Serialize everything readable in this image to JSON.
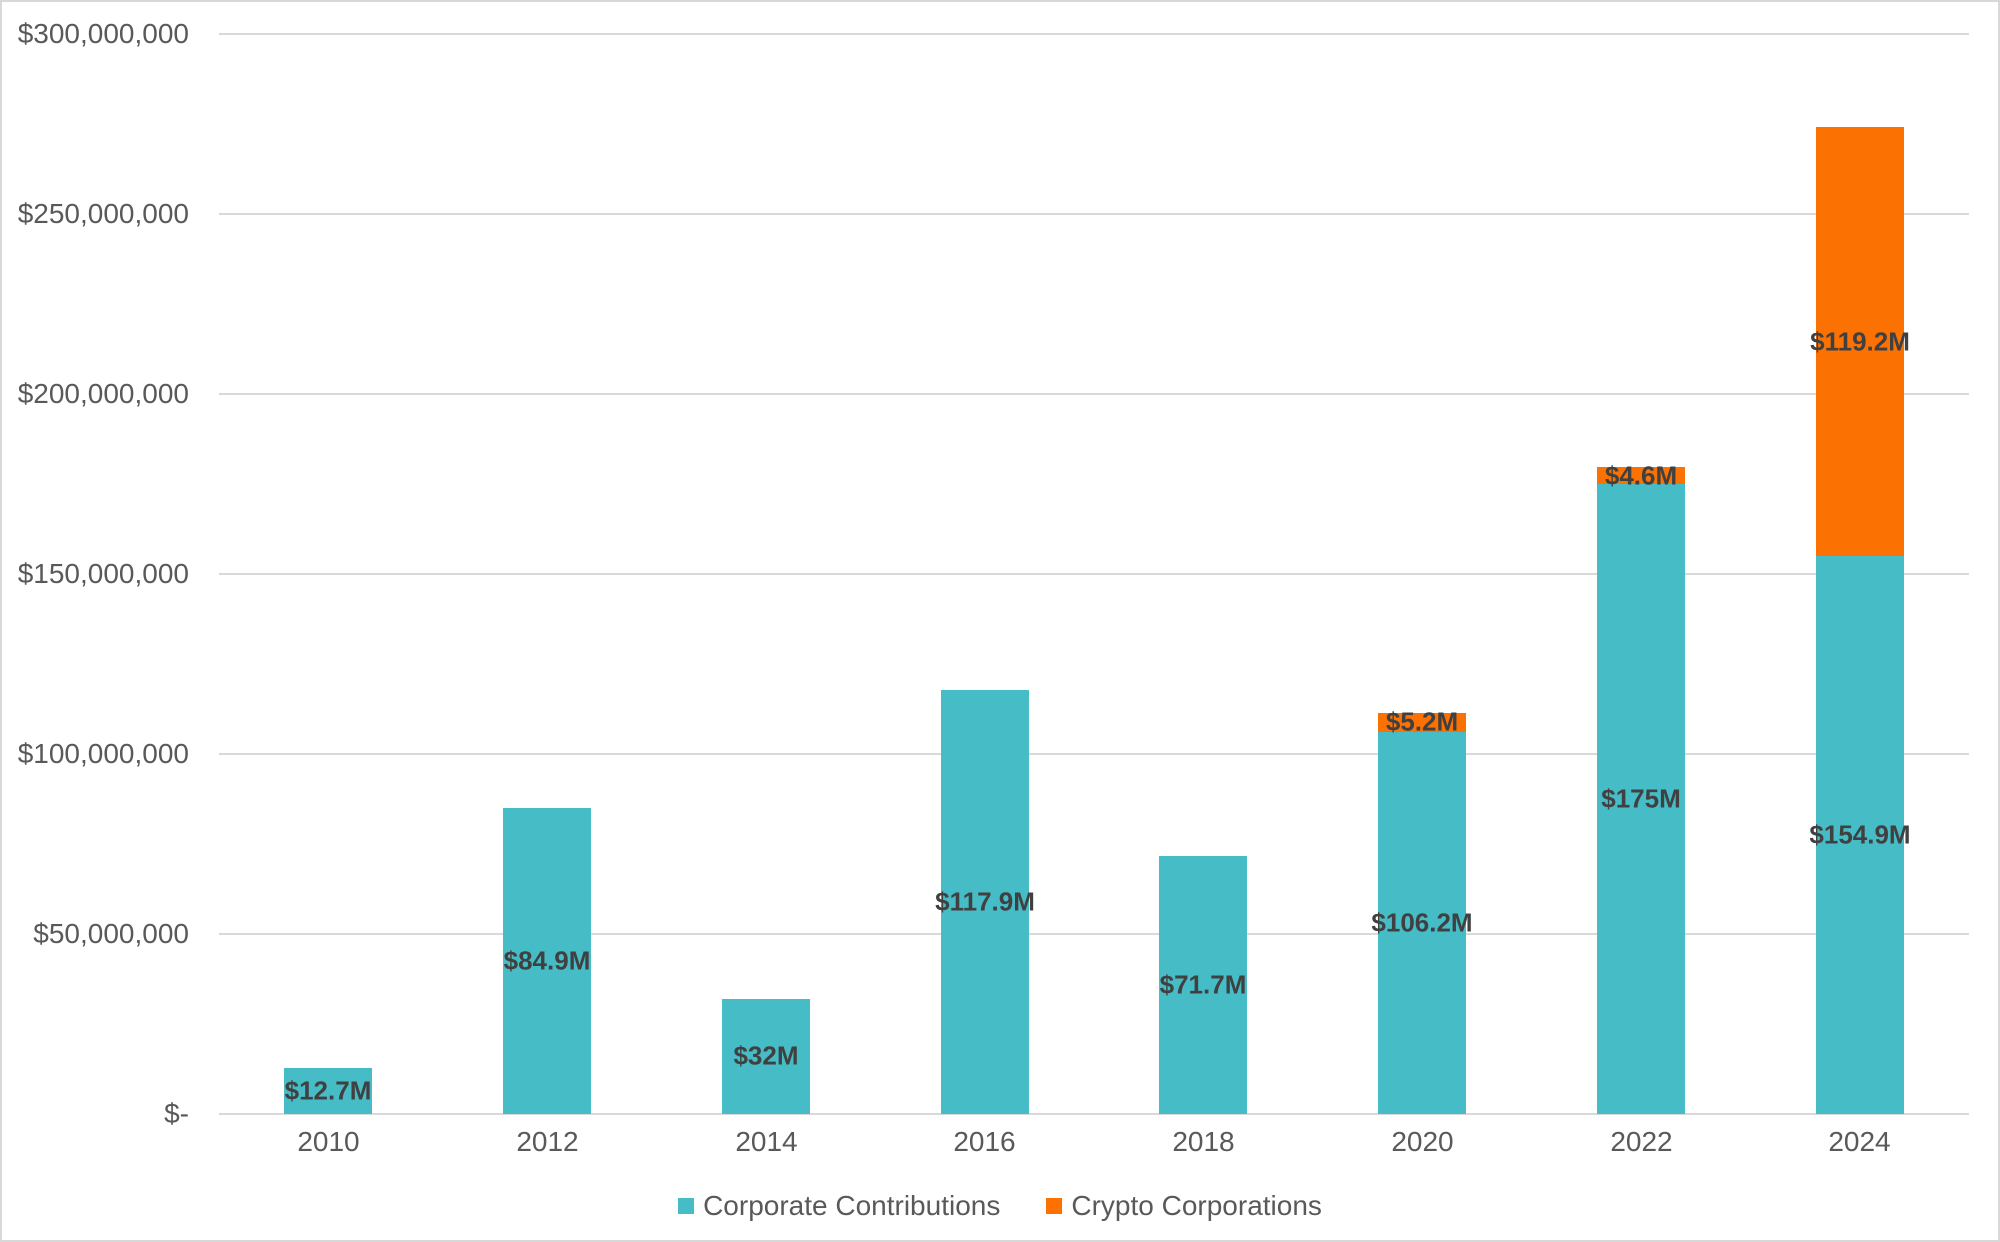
{
  "chart_data": {
    "type": "bar",
    "stacked": true,
    "title": "",
    "xlabel": "",
    "ylabel": "",
    "categories": [
      "2010",
      "2012",
      "2014",
      "2016",
      "2018",
      "2020",
      "2022",
      "2024"
    ],
    "series": [
      {
        "name": "Corporate Contributions",
        "color": "#45bcc6",
        "values": [
          12700000,
          84900000,
          32000000,
          117900000,
          71700000,
          106200000,
          175000000,
          154900000
        ],
        "labels": [
          "$12.7M",
          "$84.9M",
          "$32M",
          "$117.9M",
          "$71.7M",
          "$106.2M",
          "$175M",
          "$154.9M"
        ]
      },
      {
        "name": "Crypto Corporations",
        "color": "#fb7203",
        "values": [
          0,
          0,
          0,
          0,
          0,
          5200000,
          4600000,
          119200000
        ],
        "labels": [
          "",
          "",
          "",
          "",
          "",
          "$5.2M",
          "$4.6M",
          "$119.2M"
        ]
      }
    ],
    "ylim": [
      0,
      300000000
    ],
    "ytick_interval": 50000000,
    "ytick_labels": [
      "$-",
      "$50,000,000",
      "$100,000,000",
      "$150,000,000",
      "$200,000,000",
      "$250,000,000",
      "$300,000,000"
    ],
    "grid": true,
    "legend_position": "bottom-center",
    "colors": {
      "grid": "#d9d9d9",
      "axis_text": "#595959",
      "data_label": "#404040",
      "background": "#ffffff",
      "border": "#d8d8d8"
    }
  }
}
